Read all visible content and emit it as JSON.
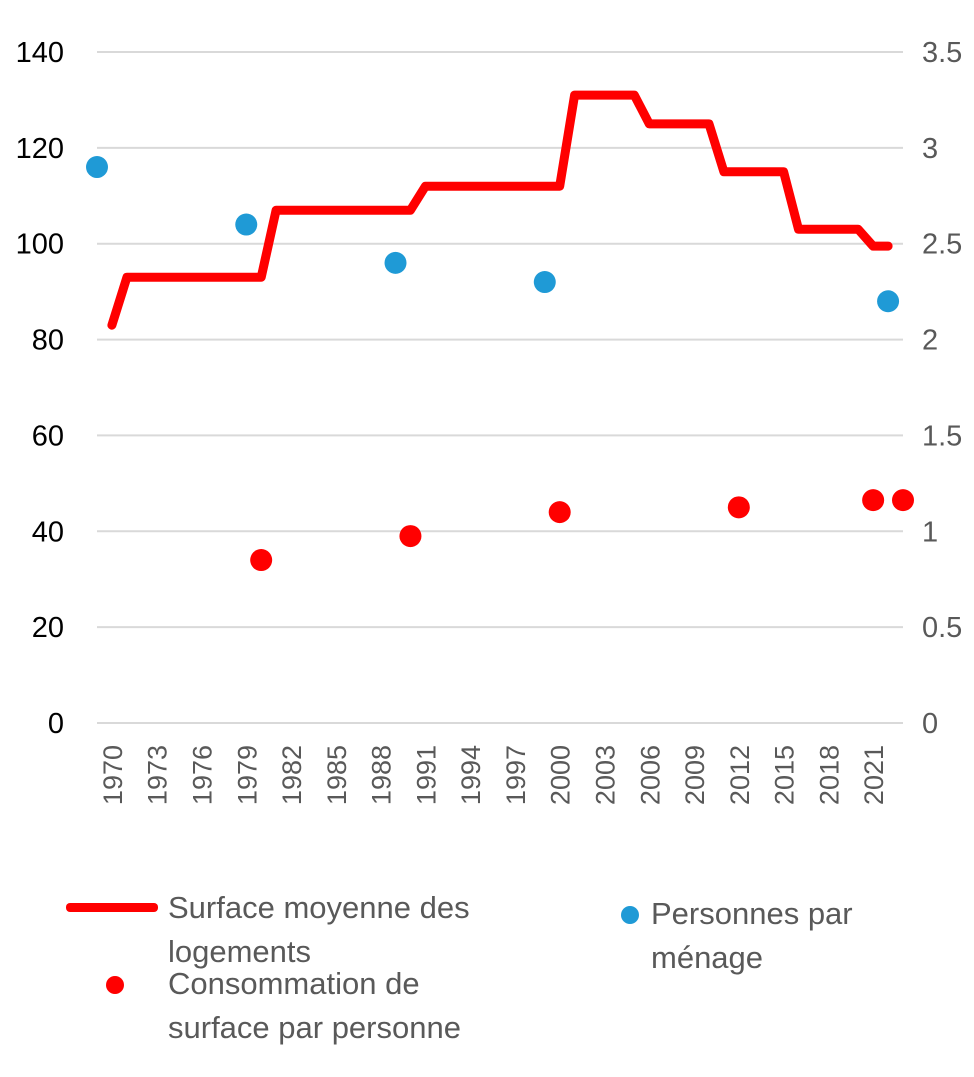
{
  "colors": {
    "surface_line": "#ff0000",
    "consommation_dots": "#ff0000",
    "personnes_dots": "#1f9ad6",
    "grid": "#d9d9d9"
  },
  "chart_data": {
    "type": "line",
    "x_axis": {
      "labels": [
        "1970",
        "1973",
        "1976",
        "1979",
        "1982",
        "1985",
        "1988",
        "1991",
        "1994",
        "1997",
        "2000",
        "2003",
        "2006",
        "2009",
        "2012",
        "2015",
        "2018",
        "2021"
      ],
      "range": [
        1969,
        2023
      ]
    },
    "y_left": {
      "range": [
        0,
        140
      ],
      "ticks": [
        "0",
        "20",
        "40",
        "60",
        "80",
        "100",
        "120",
        "140"
      ]
    },
    "y_right": {
      "range": [
        0,
        3.5
      ],
      "ticks": [
        "0",
        "0.5",
        "1",
        "1.5",
        "2",
        "2.5",
        "3",
        "3.5"
      ]
    },
    "grid": true,
    "legend_position": "bottom",
    "series": [
      {
        "name": "Surface moyenne des logements",
        "kind": "line",
        "axis": "left",
        "points": [
          [
            1970,
            83
          ],
          [
            1971,
            93
          ],
          [
            1980,
            93
          ],
          [
            1981,
            107
          ],
          [
            1990,
            107
          ],
          [
            1991,
            112
          ],
          [
            2000,
            112
          ],
          [
            2001,
            131
          ],
          [
            2005,
            131
          ],
          [
            2006,
            125
          ],
          [
            2010,
            125
          ],
          [
            2011,
            115
          ],
          [
            2015,
            115
          ],
          [
            2016,
            103
          ],
          [
            2020,
            103
          ],
          [
            2021,
            99.5
          ],
          [
            2022,
            99.5
          ]
        ]
      },
      {
        "name": "Personnes par ménage",
        "kind": "scatter",
        "axis": "right",
        "points": [
          [
            1969,
            2.9
          ],
          [
            1979,
            2.6
          ],
          [
            1989,
            2.4
          ],
          [
            1999,
            2.3
          ],
          [
            2022,
            2.2
          ]
        ]
      },
      {
        "name": "Consommation de surface par personne",
        "kind": "scatter",
        "axis": "left",
        "points": [
          [
            1980,
            34
          ],
          [
            1990,
            39
          ],
          [
            2000,
            44
          ],
          [
            2012,
            45
          ],
          [
            2021,
            46.5
          ],
          [
            2023,
            46.5
          ]
        ]
      }
    ]
  },
  "legend": {
    "surface_line": [
      "Surface moyenne des",
      "logements"
    ],
    "consommation": [
      "Consommation de",
      "surface par personne"
    ],
    "personnes": [
      "Personnes par",
      "ménage"
    ]
  }
}
